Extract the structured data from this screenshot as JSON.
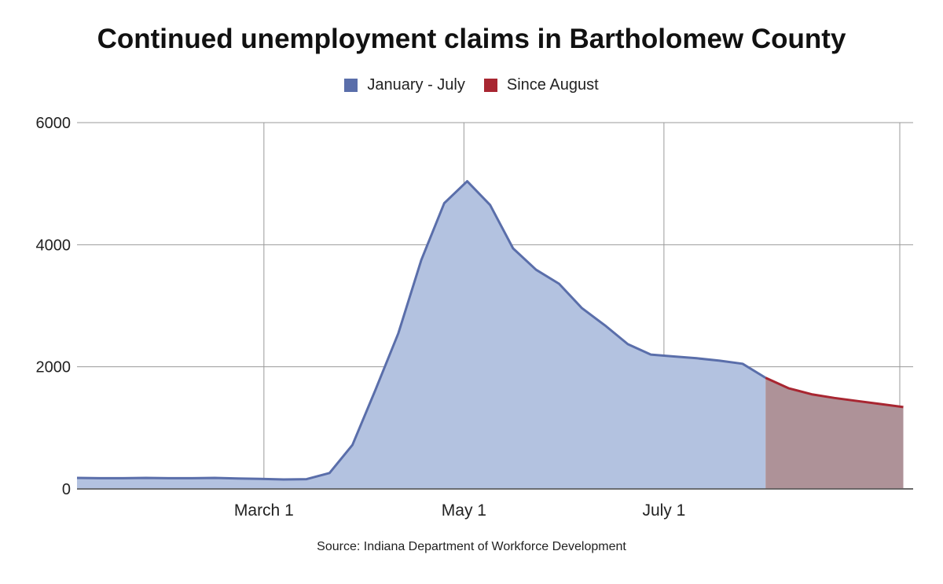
{
  "chart_data": {
    "type": "area",
    "title": "Continued unemployment claims in Bartholomew County",
    "source": "Source: Indiana Department of Workforce Development",
    "xlabel": "",
    "ylabel": "",
    "ylim": [
      0,
      6000
    ],
    "yticks": [
      "0",
      "2000",
      "4000",
      "6000"
    ],
    "xticks": [
      {
        "date": "2020-03-01",
        "label": "March 1"
      },
      {
        "date": "2020-05-01",
        "label": "May 1"
      },
      {
        "date": "2020-07-01",
        "label": "July 1"
      }
    ],
    "xlim": [
      "2020-01-04",
      "2020-09-15"
    ],
    "grid": true,
    "legend_position": "top-center",
    "series": [
      {
        "name": "January - July",
        "color": "#5a6eaa",
        "fill": "#b3c2e0",
        "points": [
          [
            "2020-01-04",
            180
          ],
          [
            "2020-01-11",
            175
          ],
          [
            "2020-01-18",
            175
          ],
          [
            "2020-01-25",
            180
          ],
          [
            "2020-02-01",
            175
          ],
          [
            "2020-02-08",
            175
          ],
          [
            "2020-02-15",
            180
          ],
          [
            "2020-02-22",
            170
          ],
          [
            "2020-02-29",
            165
          ],
          [
            "2020-03-07",
            155
          ],
          [
            "2020-03-14",
            160
          ],
          [
            "2020-03-21",
            260
          ],
          [
            "2020-03-28",
            720
          ],
          [
            "2020-04-04",
            1620
          ],
          [
            "2020-04-11",
            2550
          ],
          [
            "2020-04-18",
            3750
          ],
          [
            "2020-04-25",
            4680
          ],
          [
            "2020-05-02",
            5040
          ],
          [
            "2020-05-09",
            4650
          ],
          [
            "2020-05-16",
            3940
          ],
          [
            "2020-05-23",
            3590
          ],
          [
            "2020-05-30",
            3360
          ],
          [
            "2020-06-06",
            2960
          ],
          [
            "2020-06-13",
            2680
          ],
          [
            "2020-06-20",
            2370
          ],
          [
            "2020-06-27",
            2200
          ],
          [
            "2020-07-04",
            2170
          ],
          [
            "2020-07-11",
            2140
          ],
          [
            "2020-07-18",
            2100
          ],
          [
            "2020-07-25",
            2050
          ],
          [
            "2020-08-01",
            1820
          ]
        ]
      },
      {
        "name": "Since August",
        "color": "#a82631",
        "fill": "#ae9298",
        "points": [
          [
            "2020-08-01",
            1820
          ],
          [
            "2020-08-08",
            1650
          ],
          [
            "2020-08-15",
            1550
          ],
          [
            "2020-08-22",
            1490
          ],
          [
            "2020-08-29",
            1440
          ],
          [
            "2020-09-05",
            1390
          ],
          [
            "2020-09-12",
            1340
          ]
        ]
      }
    ]
  }
}
